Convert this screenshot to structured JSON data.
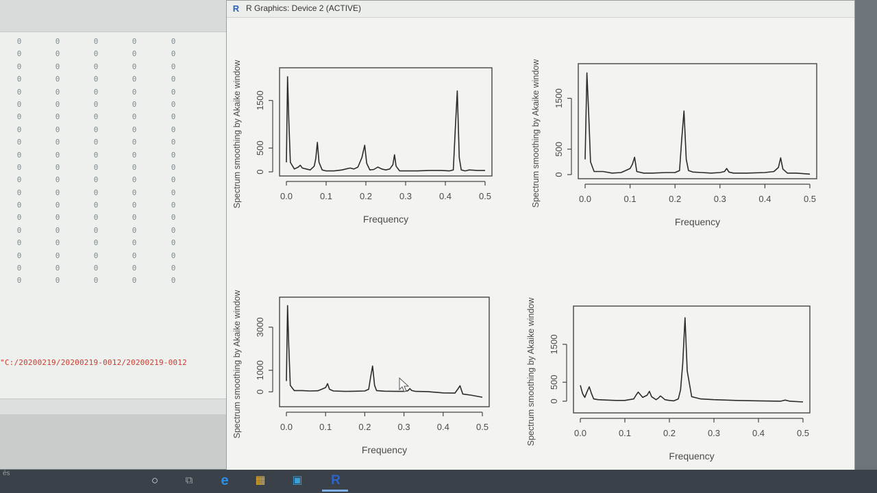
{
  "console": {
    "zero_columns": [
      {
        "values": [
          "0",
          "0",
          "0",
          "0",
          "0",
          "0",
          "0",
          "0",
          "0",
          "0",
          "0",
          "0",
          "0",
          "0",
          "0",
          "0",
          "0",
          "0",
          "0",
          "0"
        ]
      },
      {
        "values": [
          "0",
          "0",
          "0",
          "0",
          "0",
          "0",
          "0",
          "0",
          "0",
          "0",
          "0",
          "0",
          "0",
          "0",
          "0",
          "0",
          "0",
          "0",
          "0",
          "0"
        ]
      },
      {
        "values": [
          "0",
          "0",
          "0",
          "0",
          "0",
          "0",
          "0",
          "0",
          "0",
          "0",
          "0",
          "0",
          "0",
          "0",
          "0",
          "0",
          "0",
          "0",
          "0",
          "0"
        ]
      },
      {
        "values": [
          "0",
          "0",
          "0",
          "0",
          "0",
          "0",
          "0",
          "0",
          "0",
          "0",
          "0",
          "0",
          "0",
          "0",
          "0",
          "0",
          "0",
          "0",
          "0",
          "0"
        ]
      },
      {
        "values": [
          "0",
          "0",
          "0",
          "0",
          "0",
          "0",
          "0",
          "0",
          "0",
          "0",
          "0",
          "0",
          "0",
          "0",
          "0",
          "0",
          "0",
          "0",
          "0",
          "0"
        ]
      }
    ],
    "path_text": "\"C:/20200219/20200219-0012/20200219-0012",
    "bottom_left_text": "és"
  },
  "window": {
    "title": "R Graphics: Device 2 (ACTIVE)",
    "icon_text": "R"
  },
  "colors": {
    "plot_line": "#2b2b2b",
    "frame": "#444444",
    "text": "#4a4a4a",
    "path_text": "#c93a2c"
  },
  "taskbar": {
    "icons": [
      "cortana-icon",
      "task-view-icon",
      "edge-icon",
      "file-explorer-icon",
      "store-icon",
      "r-app-icon"
    ]
  },
  "chart_data": [
    {
      "type": "line",
      "ylabel": "Spectrum smoothing by  Akaike  window",
      "xlabel": "Frequency",
      "xlim": [
        0,
        0.5
      ],
      "ylim": [
        0,
        2100
      ],
      "xticks": [
        "0.0",
        "0.1",
        "0.2",
        "0.3",
        "0.4",
        "0.5"
      ],
      "yticks": [
        {
          "v": 0,
          "label": "0"
        },
        {
          "v": 500,
          "label": "500"
        },
        {
          "v": 1500,
          "label": "1500"
        }
      ],
      "x": [
        0,
        0.003,
        0.006,
        0.01,
        0.02,
        0.03,
        0.035,
        0.04,
        0.05,
        0.06,
        0.07,
        0.074,
        0.078,
        0.082,
        0.09,
        0.1,
        0.12,
        0.14,
        0.16,
        0.17,
        0.18,
        0.19,
        0.197,
        0.202,
        0.21,
        0.22,
        0.23,
        0.24,
        0.25,
        0.26,
        0.268,
        0.272,
        0.276,
        0.285,
        0.3,
        0.33,
        0.36,
        0.39,
        0.41,
        0.42,
        0.425,
        0.43,
        0.435,
        0.44,
        0.45,
        0.46,
        0.48,
        0.5
      ],
      "y": [
        200,
        2000,
        1100,
        200,
        60,
        100,
        140,
        80,
        60,
        40,
        120,
        280,
        620,
        200,
        40,
        20,
        20,
        40,
        80,
        60,
        100,
        300,
        560,
        180,
        40,
        50,
        100,
        60,
        40,
        60,
        150,
        360,
        120,
        20,
        20,
        20,
        30,
        30,
        20,
        40,
        900,
        1700,
        300,
        40,
        20,
        40,
        30,
        30
      ]
    },
    {
      "type": "line",
      "ylabel": "Spectrum smoothing by  Akaike  window",
      "xlabel": "Frequency",
      "xlim": [
        0,
        0.5
      ],
      "ylim": [
        0,
        2100
      ],
      "xticks": [
        "0.0",
        "0.1",
        "0.2",
        "0.3",
        "0.4",
        "0.5"
      ],
      "yticks": [
        {
          "v": 0,
          "label": "0"
        },
        {
          "v": 500,
          "label": "500"
        },
        {
          "v": 1500,
          "label": "1500"
        }
      ],
      "x": [
        0,
        0.004,
        0.008,
        0.012,
        0.02,
        0.04,
        0.06,
        0.08,
        0.09,
        0.1,
        0.105,
        0.11,
        0.115,
        0.13,
        0.15,
        0.18,
        0.2,
        0.21,
        0.215,
        0.22,
        0.225,
        0.23,
        0.24,
        0.26,
        0.28,
        0.3,
        0.31,
        0.315,
        0.32,
        0.33,
        0.36,
        0.4,
        0.42,
        0.43,
        0.435,
        0.44,
        0.45,
        0.47,
        0.5
      ],
      "y": [
        300,
        2000,
        1200,
        250,
        60,
        60,
        30,
        40,
        80,
        120,
        200,
        340,
        60,
        30,
        30,
        40,
        40,
        80,
        700,
        1250,
        300,
        80,
        50,
        40,
        30,
        40,
        60,
        120,
        50,
        30,
        30,
        40,
        60,
        140,
        330,
        110,
        30,
        30,
        10
      ]
    },
    {
      "type": "line",
      "ylabel": "Spectrum smoothing by  Akaike  window",
      "xlabel": "Frequency",
      "xlim": [
        0,
        0.5
      ],
      "ylim": [
        -500,
        4200
      ],
      "xticks": [
        "0.0",
        "0.1",
        "0.2",
        "0.3",
        "0.4",
        "0.5"
      ],
      "yticks": [
        {
          "v": 0,
          "label": "0"
        },
        {
          "v": 1000,
          "label": "1000"
        },
        {
          "v": 3000,
          "label": "3000"
        }
      ],
      "x": [
        0,
        0.003,
        0.006,
        0.01,
        0.02,
        0.04,
        0.06,
        0.08,
        0.09,
        0.1,
        0.105,
        0.11,
        0.12,
        0.15,
        0.18,
        0.2,
        0.21,
        0.215,
        0.22,
        0.225,
        0.23,
        0.25,
        0.28,
        0.3,
        0.31,
        0.315,
        0.32,
        0.33,
        0.36,
        0.4,
        0.43,
        0.437,
        0.443,
        0.45,
        0.47,
        0.5
      ],
      "y": [
        500,
        4000,
        2200,
        300,
        60,
        60,
        40,
        50,
        120,
        200,
        380,
        120,
        40,
        20,
        30,
        40,
        120,
        700,
        1200,
        300,
        60,
        30,
        20,
        20,
        50,
        150,
        60,
        20,
        10,
        -50,
        -60,
        120,
        280,
        -100,
        -150,
        -250
      ]
    },
    {
      "type": "line",
      "ylabel": "Spectrum smoothing by  Akaike  window",
      "xlabel": "Frequency",
      "xlim": [
        0,
        0.5
      ],
      "ylim": [
        -200,
        2400
      ],
      "xticks": [
        "0.0",
        "0.1",
        "0.2",
        "0.3",
        "0.4",
        "0.5"
      ],
      "yticks": [
        {
          "v": 0,
          "label": "0"
        },
        {
          "v": 500,
          "label": "500"
        },
        {
          "v": 1500,
          "label": "1500"
        }
      ],
      "x": [
        0,
        0.005,
        0.01,
        0.015,
        0.02,
        0.025,
        0.03,
        0.04,
        0.06,
        0.08,
        0.1,
        0.12,
        0.125,
        0.13,
        0.14,
        0.15,
        0.155,
        0.16,
        0.17,
        0.175,
        0.18,
        0.19,
        0.2,
        0.21,
        0.22,
        0.225,
        0.23,
        0.235,
        0.24,
        0.25,
        0.27,
        0.3,
        0.35,
        0.4,
        0.45,
        0.46,
        0.47,
        0.5
      ],
      "y": [
        420,
        200,
        100,
        250,
        380,
        200,
        60,
        40,
        30,
        20,
        20,
        60,
        160,
        240,
        100,
        160,
        260,
        120,
        40,
        80,
        140,
        40,
        20,
        10,
        60,
        300,
        1000,
        2200,
        800,
        120,
        60,
        40,
        20,
        10,
        0,
        30,
        0,
        -20
      ]
    }
  ]
}
